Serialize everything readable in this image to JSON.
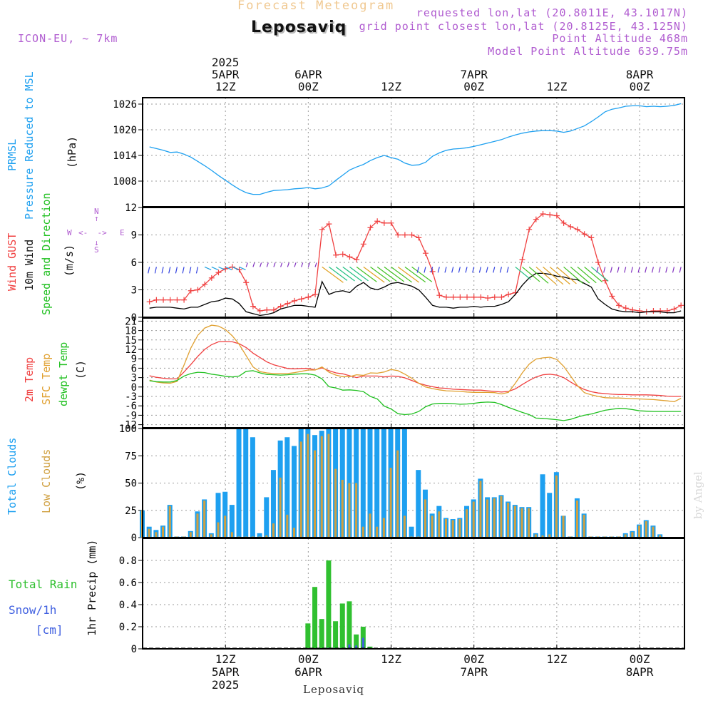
{
  "header": {
    "title": "Forecast Meteogram",
    "station": "Leposaviq",
    "model": "ICON-EU, ~ 7km",
    "requested": "requested lon,lat (20.8011E, 43.1017N)",
    "grid": "grid point closest lon,lat (20.8125E, 43.125N)",
    "point_alt": "Point Altitude 468m",
    "model_alt": "Model Point Altitude 639.75m",
    "footer_station": "Leposaviq",
    "watermark": "by Angel"
  },
  "top_axis": {
    "year": "2025",
    "labels": [
      {
        "h": 12,
        "date": "5APR",
        "time": "12Z"
      },
      {
        "h": 24,
        "date": "6APR",
        "time": "00Z"
      },
      {
        "h": 36,
        "date": "",
        "time": "12Z"
      },
      {
        "h": 48,
        "date": "7APR",
        "time": "00Z"
      },
      {
        "h": 60,
        "date": "",
        "time": "12Z"
      },
      {
        "h": 72,
        "date": "8APR",
        "time": "00Z"
      }
    ]
  },
  "bottom_axis": {
    "labels": [
      {
        "h": 12,
        "time": "12Z",
        "date": "5APR",
        "year": "2025"
      },
      {
        "h": 24,
        "time": "00Z",
        "date": "6APR",
        "year": ""
      },
      {
        "h": 36,
        "time": "12Z",
        "date": "",
        "year": ""
      },
      {
        "h": 48,
        "time": "00Z",
        "date": "7APR",
        "year": ""
      },
      {
        "h": 60,
        "time": "12Z",
        "date": "",
        "year": ""
      },
      {
        "h": 72,
        "time": "00Z",
        "date": "8APR",
        "year": ""
      }
    ]
  },
  "panel_labels": {
    "prmsl": "PRMSL",
    "prmsl2": "Pressure Reduced to MSL",
    "prmsl_unit": "(hPa)",
    "gust": "Wind GUST",
    "wind10": "10m Wind",
    "wind_speed": "Speed and Direction",
    "wind_unit": "(m/s)",
    "temp2m": "2m Temp",
    "sfc": "SFC Temp",
    "dew": "dewpt Temp",
    "temp_unit": "(C)",
    "total_clouds": "Total Clouds",
    "low_clouds": "Low Clouds",
    "cloud_unit": "(%)",
    "total_rain": "Total  Rain",
    "snow": "Snow/1h",
    "snow_unit": "[cm]",
    "precip": "1hr Precip (mm)",
    "compass_n": "N",
    "compass_s": "S",
    "compass_w": "W",
    "compass_e": "E"
  },
  "colors": {
    "pressure": "#1ea0f0",
    "gust": "#f04040",
    "wind10": "#000000",
    "temp2m": "#f04040",
    "sfc": "#e0a030",
    "dew": "#20c020",
    "total_clouds": "#1ea0f0",
    "low_clouds": "#d0a040",
    "rain": "#30c030",
    "snow": "#4060e0",
    "purple": "#b05cd0"
  },
  "chart_data": [
    {
      "type": "line",
      "name": "prmsl",
      "ylabel": "(hPa)",
      "ylim": [
        1002,
        1027.5
      ],
      "yticks": [
        1008,
        1014,
        1020,
        1026
      ],
      "x": [
        1,
        2,
        3,
        4,
        5,
        6,
        7,
        8,
        9,
        10,
        11,
        12,
        13,
        14,
        15,
        16,
        17,
        18,
        19,
        20,
        21,
        22,
        23,
        24,
        25,
        26,
        27,
        28,
        29,
        30,
        31,
        32,
        33,
        34,
        35,
        36,
        37,
        38,
        39,
        40,
        41,
        42,
        43,
        44,
        45,
        46,
        47,
        48,
        49,
        50,
        51,
        52,
        53,
        54,
        55,
        56,
        57,
        58,
        59,
        60,
        61,
        62,
        63,
        64,
        65,
        66,
        67,
        68,
        69,
        70,
        71,
        72,
        73,
        74,
        75,
        76,
        77,
        78
      ],
      "series": [
        {
          "name": "PRMSL",
          "values": [
            1016.0,
            1015.6,
            1015.2,
            1014.7,
            1014.8,
            1014.3,
            1013.6,
            1012.6,
            1011.6,
            1010.5,
            1009.3,
            1008.2,
            1007.1,
            1006.1,
            1005.3,
            1004.9,
            1004.9,
            1005.4,
            1005.8,
            1005.9,
            1006.0,
            1006.2,
            1006.3,
            1006.5,
            1006.2,
            1006.4,
            1006.9,
            1008.2,
            1009.4,
            1010.6,
            1011.3,
            1011.9,
            1012.8,
            1013.5,
            1014.0,
            1013.5,
            1013.1,
            1012.2,
            1011.7,
            1011.8,
            1012.4,
            1013.8,
            1014.6,
            1015.2,
            1015.5,
            1015.6,
            1015.8,
            1016.1,
            1016.5,
            1016.9,
            1017.3,
            1017.7,
            1018.3,
            1018.8,
            1019.2,
            1019.5,
            1019.7,
            1019.8,
            1019.8,
            1019.7,
            1019.4,
            1019.7,
            1020.3,
            1020.9,
            1021.9,
            1023.0,
            1024.2,
            1024.8,
            1025.1,
            1025.5,
            1025.6,
            1025.6,
            1025.4,
            1025.5,
            1025.4,
            1025.5,
            1025.7,
            1026.1
          ]
        }
      ]
    },
    {
      "type": "line",
      "name": "wind",
      "ylabel": "(m/s)",
      "ylim": [
        0,
        12
      ],
      "yticks": [
        0,
        3,
        6,
        9,
        12
      ],
      "x": [
        1,
        2,
        3,
        4,
        5,
        6,
        7,
        8,
        9,
        10,
        11,
        12,
        13,
        14,
        15,
        16,
        17,
        18,
        19,
        20,
        21,
        22,
        23,
        24,
        25,
        26,
        27,
        28,
        29,
        30,
        31,
        32,
        33,
        34,
        35,
        36,
        37,
        38,
        39,
        40,
        41,
        42,
        43,
        44,
        45,
        46,
        47,
        48,
        49,
        50,
        51,
        52,
        53,
        54,
        55,
        56,
        57,
        58,
        59,
        60,
        61,
        62,
        63,
        64,
        65,
        66,
        67,
        68,
        69,
        70,
        71,
        72,
        73,
        74,
        75,
        76,
        77,
        78
      ],
      "series": [
        {
          "name": "Wind GUST",
          "values": [
            1.7,
            1.9,
            1.9,
            1.9,
            1.9,
            1.9,
            2.9,
            3.0,
            3.6,
            4.3,
            4.9,
            5.3,
            5.5,
            5.2,
            3.8,
            1.2,
            0.7,
            0.8,
            0.8,
            1.2,
            1.5,
            1.8,
            2.0,
            2.2,
            2.5,
            9.6,
            10.2,
            6.8,
            6.9,
            6.6,
            6.3,
            8.0,
            9.8,
            10.5,
            10.3,
            10.3,
            9.0,
            9.0,
            9.0,
            8.7,
            7.0,
            5.0,
            2.4,
            2.2,
            2.2,
            2.2,
            2.2,
            2.2,
            2.2,
            2.1,
            2.2,
            2.2,
            2.5,
            2.7,
            6.3,
            9.6,
            10.7,
            11.3,
            11.2,
            11.1,
            10.3,
            9.9,
            9.6,
            9.1,
            8.7,
            6.0,
            4.0,
            2.3,
            1.3,
            1.0,
            0.8,
            0.7,
            0.6,
            0.7,
            0.7,
            0.7,
            0.9,
            1.3
          ]
        },
        {
          "name": "10m Wind",
          "values": [
            1.0,
            1.1,
            1.1,
            1.1,
            1.0,
            0.9,
            1.1,
            1.1,
            1.4,
            1.7,
            1.8,
            2.1,
            2.0,
            1.5,
            0.6,
            0.4,
            0.2,
            0.3,
            0.5,
            0.9,
            1.1,
            1.3,
            1.3,
            1.2,
            1.1,
            3.9,
            2.5,
            2.8,
            2.9,
            2.7,
            3.4,
            3.8,
            3.2,
            3.0,
            3.3,
            3.7,
            3.8,
            3.6,
            3.4,
            3.0,
            2.2,
            1.3,
            1.1,
            1.1,
            1.0,
            1.1,
            1.1,
            1.2,
            1.1,
            1.2,
            1.2,
            1.4,
            1.7,
            2.5,
            3.5,
            4.3,
            4.8,
            4.8,
            4.7,
            4.5,
            4.4,
            4.2,
            4.1,
            3.7,
            3.3,
            2.0,
            1.4,
            0.9,
            0.7,
            0.6,
            0.6,
            0.5,
            0.6,
            0.6,
            0.6,
            0.5,
            0.5,
            0.7
          ]
        }
      ]
    },
    {
      "type": "line",
      "name": "temperature",
      "ylabel": "(C)",
      "ylim": [
        -13,
        22
      ],
      "yticks": [
        -12,
        -9,
        -6,
        -3,
        0,
        3,
        6,
        9,
        12,
        15,
        18,
        21
      ],
      "x": [
        1,
        2,
        3,
        4,
        5,
        6,
        7,
        8,
        9,
        10,
        11,
        12,
        13,
        14,
        15,
        16,
        17,
        18,
        19,
        20,
        21,
        22,
        23,
        24,
        25,
        26,
        27,
        28,
        29,
        30,
        31,
        32,
        33,
        34,
        35,
        36,
        37,
        38,
        39,
        40,
        41,
        42,
        43,
        44,
        45,
        46,
        47,
        48,
        49,
        50,
        51,
        52,
        53,
        54,
        55,
        56,
        57,
        58,
        59,
        60,
        61,
        62,
        63,
        64,
        65,
        66,
        67,
        68,
        69,
        70,
        71,
        72,
        73,
        74,
        75,
        76,
        77,
        78
      ],
      "series": [
        {
          "name": "2m Temp",
          "values": [
            3.6,
            3.1,
            2.8,
            2.6,
            2.6,
            4.8,
            7.2,
            9.8,
            12.0,
            13.5,
            14.4,
            14.5,
            14.4,
            13.8,
            12.6,
            10.8,
            9.4,
            8.0,
            7.1,
            6.5,
            5.9,
            5.8,
            5.9,
            5.9,
            5.5,
            6.1,
            5.2,
            4.5,
            4.2,
            3.6,
            3.0,
            3.5,
            3.5,
            3.5,
            3.2,
            3.5,
            3.4,
            2.9,
            2.1,
            1.2,
            0.6,
            0.1,
            -0.3,
            -0.4,
            -0.7,
            -0.8,
            -0.9,
            -1.0,
            -1.0,
            -1.2,
            -1.4,
            -1.6,
            -1.4,
            -0.6,
            0.8,
            2.1,
            3.2,
            3.9,
            4.1,
            3.8,
            3.0,
            1.6,
            0.3,
            -0.8,
            -1.5,
            -1.9,
            -2.1,
            -2.3,
            -2.4,
            -2.4,
            -2.5,
            -2.5,
            -2.5,
            -2.6,
            -2.7,
            -2.9,
            -3.0,
            -3.0
          ]
        },
        {
          "name": "SFC Temp",
          "values": [
            2.2,
            1.6,
            1.3,
            1.2,
            1.8,
            7.0,
            12.5,
            16.5,
            18.8,
            19.7,
            19.4,
            18.3,
            16.3,
            13.6,
            10.0,
            6.4,
            4.9,
            4.5,
            4.3,
            4.3,
            4.3,
            4.6,
            5.0,
            5.4,
            5.4,
            6.4,
            4.7,
            3.8,
            3.3,
            3.3,
            3.9,
            3.7,
            4.5,
            4.4,
            4.8,
            5.6,
            5.2,
            4.1,
            2.8,
            1.2,
            0.0,
            -0.5,
            -0.9,
            -1.2,
            -1.3,
            -1.4,
            -1.6,
            -1.7,
            -1.7,
            -1.7,
            -1.8,
            -2.2,
            -1.7,
            1.2,
            4.5,
            7.3,
            8.9,
            9.3,
            9.5,
            8.8,
            6.6,
            3.5,
            0.4,
            -1.8,
            -2.5,
            -3.0,
            -3.4,
            -3.5,
            -3.5,
            -3.6,
            -3.7,
            -3.8,
            -3.9,
            -4.0,
            -4.2,
            -4.4,
            -4.7,
            -3.6
          ]
        },
        {
          "name": "dewpt Temp",
          "values": [
            2.0,
            1.7,
            1.6,
            1.6,
            2.1,
            3.5,
            4.3,
            4.7,
            4.6,
            4.1,
            3.8,
            3.4,
            3.2,
            3.5,
            5.0,
            5.2,
            4.5,
            4.0,
            3.9,
            3.8,
            3.9,
            4.1,
            4.2,
            4.2,
            3.8,
            2.6,
            0.1,
            -0.3,
            -1.0,
            -0.9,
            -1.1,
            -1.5,
            -3.0,
            -3.8,
            -6.1,
            -7.0,
            -8.5,
            -8.8,
            -8.6,
            -7.8,
            -6.3,
            -5.4,
            -5.2,
            -5.2,
            -5.3,
            -5.5,
            -5.4,
            -5.2,
            -4.9,
            -4.8,
            -4.9,
            -5.6,
            -6.5,
            -7.3,
            -8.1,
            -8.8,
            -9.9,
            -10.0,
            -10.2,
            -10.4,
            -10.7,
            -10.3,
            -9.6,
            -9.0,
            -8.6,
            -8.0,
            -7.4,
            -7.1,
            -6.8,
            -6.9,
            -7.2,
            -7.6,
            -7.7,
            -7.8,
            -7.8,
            -7.8,
            -7.8,
            -7.8
          ]
        }
      ]
    },
    {
      "type": "bar",
      "name": "clouds",
      "ylabel": "(%)",
      "ylim": [
        0,
        100
      ],
      "yticks": [
        0,
        25,
        50,
        75,
        100
      ],
      "x": [
        0,
        1,
        2,
        3,
        4,
        5,
        6,
        7,
        8,
        9,
        10,
        11,
        12,
        13,
        14,
        15,
        16,
        17,
        18,
        19,
        20,
        21,
        22,
        23,
        24,
        25,
        26,
        27,
        28,
        29,
        30,
        31,
        32,
        33,
        34,
        35,
        36,
        37,
        38,
        39,
        40,
        41,
        42,
        43,
        44,
        45,
        46,
        47,
        48,
        49,
        50,
        51,
        52,
        53,
        54,
        55,
        56,
        57,
        58,
        59,
        60,
        61,
        62,
        63,
        64,
        65,
        66,
        67,
        68,
        69,
        70,
        71,
        72,
        73,
        74,
        75,
        76,
        77,
        78
      ],
      "series": [
        {
          "name": "Total Clouds",
          "values": [
            25,
            10,
            7,
            11,
            30,
            1,
            1,
            6,
            24,
            35,
            4,
            41,
            42,
            30,
            100,
            100,
            92,
            4,
            37,
            62,
            89,
            92,
            84,
            100,
            100,
            94,
            98,
            100,
            100,
            100,
            100,
            100,
            100,
            100,
            100,
            100,
            100,
            100,
            100,
            10,
            62,
            44,
            22,
            29,
            18,
            17,
            18,
            29,
            35,
            54,
            37,
            37,
            39,
            33,
            30,
            28,
            28,
            4,
            58,
            41,
            60,
            20,
            1,
            36,
            22,
            1,
            1,
            1,
            1,
            1,
            4,
            6,
            12,
            16,
            11,
            3,
            0,
            0,
            0
          ]
        },
        {
          "name": "Low Clouds",
          "values": [
            25,
            8,
            5,
            10,
            29,
            1,
            1,
            5,
            22,
            34,
            3,
            14,
            20,
            5,
            1,
            1,
            1,
            1,
            2,
            13,
            55,
            21,
            9,
            88,
            95,
            80,
            93,
            95,
            63,
            53,
            50,
            50,
            10,
            22,
            10,
            18,
            64,
            80,
            20,
            1,
            1,
            35,
            20,
            24,
            17,
            16,
            17,
            26,
            33,
            52,
            35,
            36,
            38,
            32,
            29,
            27,
            27,
            3,
            2,
            3,
            57,
            20,
            1,
            34,
            21,
            1,
            1,
            1,
            1,
            1,
            3,
            5,
            11,
            15,
            10,
            2,
            0,
            0,
            0
          ]
        }
      ]
    },
    {
      "type": "bar",
      "name": "precipitation",
      "ylabel": "1hr Precip (mm)",
      "ylim": [
        0,
        1.0
      ],
      "yticks": [
        0,
        0.2,
        0.4,
        0.6,
        0.8
      ],
      "x": [
        24,
        25,
        26,
        27,
        28,
        29,
        30,
        31,
        32,
        33
      ],
      "series": [
        {
          "name": "Total Rain",
          "values": [
            0.23,
            0.56,
            0.27,
            0.8,
            0.25,
            0.41,
            0.43,
            0.13,
            0.2,
            0.02
          ]
        },
        {
          "name": "Snow/1h",
          "values": [
            0,
            0,
            0,
            0.01,
            0.01,
            0.01,
            0.04,
            0.03,
            0.1,
            0
          ]
        }
      ]
    }
  ]
}
